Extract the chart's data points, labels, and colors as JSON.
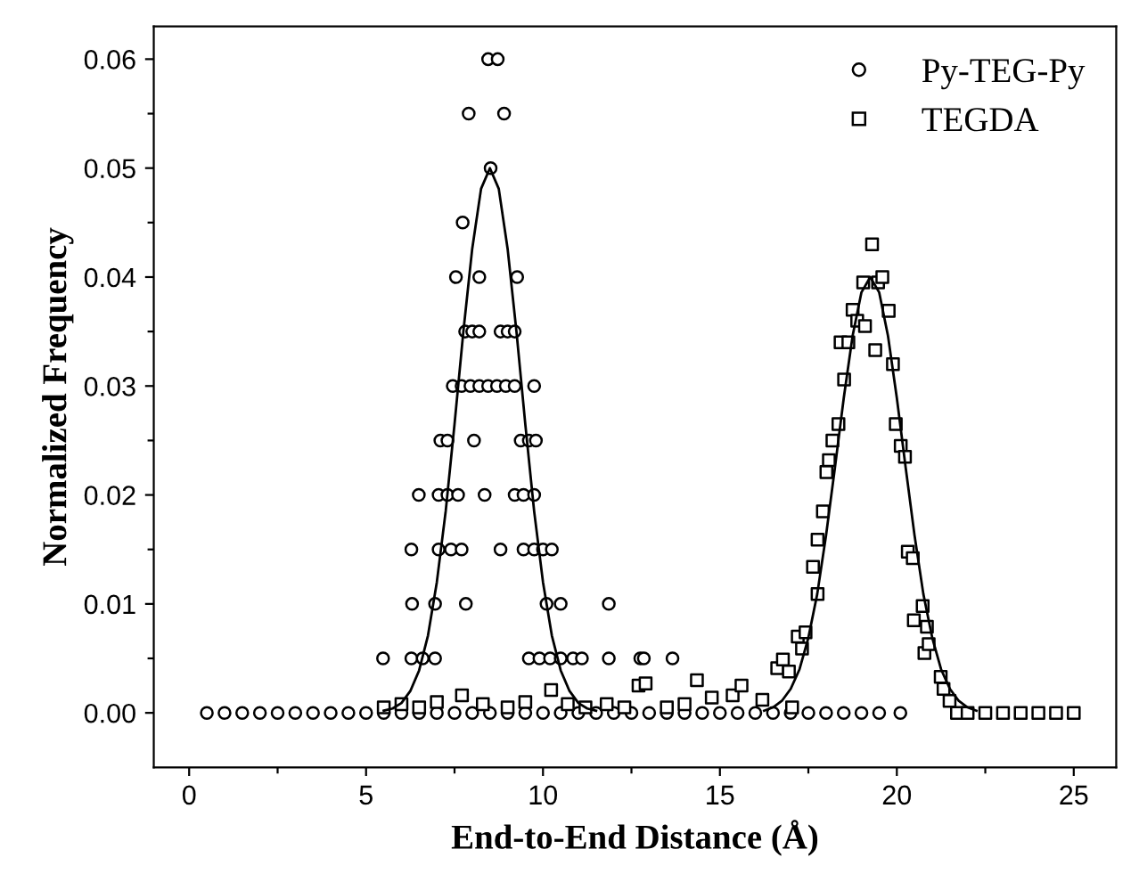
{
  "chart_data": {
    "type": "scatter",
    "xlabel": "End-to-End Distance (Å)",
    "ylabel": "Normalized Frequency",
    "xlim": [
      -1,
      26.2
    ],
    "ylim": [
      -0.005,
      0.063
    ],
    "xticks": [
      0,
      {
        "value": 2.5,
        "label": null
      },
      5,
      {
        "value": 7.5,
        "label": null
      },
      10,
      {
        "value": 12.5,
        "label": null
      },
      15,
      {
        "value": 17.5,
        "label": null
      },
      20,
      {
        "value": 22.5,
        "label": null
      },
      25
    ],
    "yticks": [
      {
        "value": 0,
        "label": "0.00"
      },
      {
        "value": 0.005,
        "label": null
      },
      {
        "value": 0.01,
        "label": "0.01"
      },
      {
        "value": 0.015,
        "label": null
      },
      {
        "value": 0.02,
        "label": "0.02"
      },
      {
        "value": 0.025,
        "label": null
      },
      {
        "value": 0.03,
        "label": "0.03"
      },
      {
        "value": 0.035,
        "label": null
      },
      {
        "value": 0.04,
        "label": "0.04"
      },
      {
        "value": 0.045,
        "label": null
      },
      {
        "value": 0.05,
        "label": "0.05"
      },
      {
        "value": 0.055,
        "label": null
      },
      {
        "value": 0.06,
        "label": "0.06"
      }
    ],
    "grid": false,
    "legend": "top right",
    "series": [
      {
        "name": "Py-TEG-Py",
        "marker": "circle",
        "color": "#000000",
        "x": [
          8.45,
          8.72,
          7.9,
          8.9,
          8.52,
          7.73,
          7.54,
          8.2,
          9.27,
          7.8,
          8.0,
          8.2,
          8.8,
          9.0,
          9.2,
          7.45,
          7.7,
          7.95,
          8.2,
          8.45,
          8.7,
          8.95,
          9.2,
          9.75,
          7.1,
          7.3,
          8.05,
          9.37,
          9.6,
          9.8,
          6.49,
          7.05,
          7.3,
          7.6,
          8.35,
          9.2,
          9.45,
          9.75,
          6.28,
          7.05,
          7.4,
          7.7,
          8.8,
          9.45,
          9.75,
          10.0,
          10.25,
          6.3,
          6.95,
          7.82,
          10.1,
          10.5,
          11.86,
          5.48,
          6.28,
          6.6,
          6.95,
          9.6,
          9.9,
          10.2,
          10.5,
          10.85,
          11.1,
          11.86,
          12.75,
          12.85,
          13.66,
          0.5,
          1.0,
          1.5,
          2.0,
          2.5,
          3.0,
          3.5,
          4.0,
          4.5,
          5.0,
          5.5,
          6.0,
          6.5,
          7.0,
          7.5,
          8.0,
          8.5,
          9.0,
          9.5,
          10.0,
          10.5,
          11.0,
          11.5,
          12.0,
          12.5,
          13.0,
          13.5,
          14.0,
          14.5,
          15.0,
          15.5,
          16.0,
          16.5,
          17.0,
          17.5,
          18.0,
          18.5,
          19.0,
          19.5,
          20.1
        ],
        "values": [
          0.06,
          0.06,
          0.055,
          0.055,
          0.05,
          0.045,
          0.04,
          0.04,
          0.04,
          0.035,
          0.035,
          0.035,
          0.035,
          0.035,
          0.035,
          0.03,
          0.03,
          0.03,
          0.03,
          0.03,
          0.03,
          0.03,
          0.03,
          0.03,
          0.025,
          0.025,
          0.025,
          0.025,
          0.025,
          0.025,
          0.02,
          0.02,
          0.02,
          0.02,
          0.02,
          0.02,
          0.02,
          0.02,
          0.015,
          0.015,
          0.015,
          0.015,
          0.015,
          0.015,
          0.015,
          0.015,
          0.015,
          0.01,
          0.01,
          0.01,
          0.01,
          0.01,
          0.01,
          0.005,
          0.005,
          0.005,
          0.005,
          0.005,
          0.005,
          0.005,
          0.005,
          0.005,
          0.005,
          0.005,
          0.005,
          0.005,
          0.005,
          0,
          0,
          0,
          0,
          0,
          0,
          0,
          0,
          0,
          0,
          0,
          0,
          0,
          0,
          0,
          0,
          0,
          0,
          0,
          0,
          0,
          0,
          0,
          0,
          0,
          0,
          0,
          0,
          0,
          0,
          0,
          0,
          0,
          0,
          0,
          0,
          0,
          0,
          0,
          0
        ]
      },
      {
        "name": "TEGDA",
        "marker": "square",
        "color": "#000000",
        "x": [
          5.5,
          6.0,
          6.5,
          7.0,
          7.71,
          8.3,
          9.0,
          9.5,
          10.23,
          10.7,
          11.2,
          11.8,
          12.3,
          12.7,
          12.9,
          13.5,
          14.0,
          14.35,
          14.77,
          15.36,
          15.61,
          16.2,
          16.62,
          16.78,
          16.95,
          17.04,
          17.2,
          17.32,
          17.42,
          17.63,
          17.76,
          17.76,
          17.91,
          18.01,
          18.08,
          18.18,
          18.35,
          18.41,
          18.51,
          18.63,
          18.75,
          18.88,
          19.05,
          19.1,
          19.3,
          19.39,
          19.47,
          19.59,
          19.77,
          19.89,
          19.97,
          20.11,
          20.23,
          20.31,
          20.45,
          20.48,
          20.73,
          20.78,
          20.85,
          20.9,
          21.24,
          21.32,
          21.49,
          21.7,
          22.0,
          22.5,
          23.0,
          23.5,
          24.0,
          24.5,
          25.0
        ],
        "values": [
          0.0005,
          0.0008,
          0.0005,
          0.001,
          0.0016,
          0.0008,
          0.0005,
          0.001,
          0.0021,
          0.0008,
          0.0005,
          0.0008,
          0.0005,
          0.0025,
          0.0027,
          0.0005,
          0.0008,
          0.003,
          0.0014,
          0.0016,
          0.0025,
          0.0012,
          0.0041,
          0.0049,
          0.0038,
          0.0005,
          0.007,
          0.0059,
          0.0074,
          0.0134,
          0.0159,
          0.0109,
          0.0185,
          0.0221,
          0.0232,
          0.025,
          0.0265,
          0.034,
          0.0306,
          0.034,
          0.037,
          0.036,
          0.0395,
          0.0355,
          0.043,
          0.0333,
          0.0395,
          0.04,
          0.0369,
          0.032,
          0.0265,
          0.0245,
          0.0235,
          0.0148,
          0.0142,
          0.0085,
          0.0098,
          0.0055,
          0.0079,
          0.0063,
          0.0033,
          0.0022,
          0.0011,
          0,
          0,
          0,
          0,
          0,
          0,
          0,
          0
        ]
      },
      {
        "type": "line",
        "color": "#000000",
        "x": [
          5.5,
          5.75,
          6.0,
          6.25,
          6.5,
          6.75,
          7.0,
          7.25,
          7.5,
          7.75,
          8.0,
          8.25,
          8.5,
          8.75,
          9.0,
          9.25,
          9.5,
          9.75,
          10.0,
          10.25,
          10.5,
          10.75,
          11.0,
          11.25,
          11.5
        ],
        "values": [
          0.0002,
          0.0004,
          0.0009,
          0.002,
          0.0039,
          0.0071,
          0.012,
          0.0185,
          0.0265,
          0.035,
          0.0426,
          0.0481,
          0.05,
          0.0481,
          0.0426,
          0.035,
          0.0265,
          0.0185,
          0.012,
          0.0071,
          0.0039,
          0.002,
          0.0009,
          0.0004,
          0.0002
        ]
      },
      {
        "type": "line",
        "color": "#000000",
        "x": [
          16.25,
          16.5,
          16.75,
          17.0,
          17.25,
          17.5,
          17.75,
          18.0,
          18.25,
          18.5,
          18.75,
          19.0,
          19.25,
          19.5,
          19.75,
          20.0,
          20.25,
          20.5,
          20.75,
          21.0,
          21.25,
          21.5,
          21.75,
          22.0,
          22.25
        ],
        "values": [
          0.0002,
          0.0005,
          0.0011,
          0.0022,
          0.004,
          0.0069,
          0.0109,
          0.0163,
          0.0225,
          0.0289,
          0.0346,
          0.0386,
          0.04,
          0.0386,
          0.0346,
          0.0289,
          0.0225,
          0.0163,
          0.0109,
          0.0069,
          0.004,
          0.0022,
          0.0011,
          0.0005,
          0.0002
        ]
      }
    ]
  }
}
